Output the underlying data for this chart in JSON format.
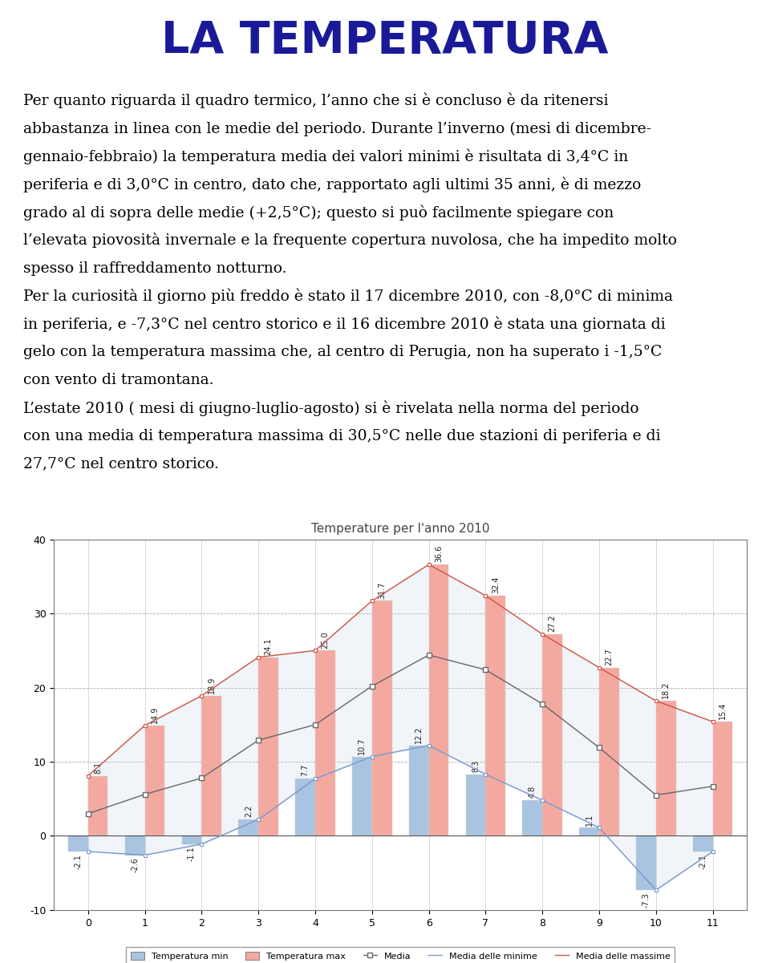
{
  "title": "Temperature per l'anno 2010",
  "months": [
    0,
    1,
    2,
    3,
    4,
    5,
    6,
    7,
    8,
    9,
    10,
    11
  ],
  "temp_min": [
    -2.1,
    -2.6,
    -1.1,
    2.2,
    7.7,
    10.7,
    12.2,
    8.3,
    4.8,
    1.1,
    -7.3,
    -2.1
  ],
  "temp_max": [
    8.1,
    14.9,
    18.9,
    24.1,
    25.0,
    31.7,
    36.6,
    32.4,
    27.2,
    22.7,
    18.2,
    15.4
  ],
  "media": [
    3.0,
    5.6,
    7.8,
    12.9,
    15.0,
    20.2,
    24.4,
    22.4,
    17.8,
    11.9,
    5.5,
    6.7
  ],
  "media_minime": [
    -2.1,
    -2.6,
    -1.1,
    2.2,
    7.7,
    10.7,
    12.2,
    8.3,
    4.8,
    1.1,
    -7.3,
    -2.1
  ],
  "media_massime": [
    8.1,
    14.9,
    18.9,
    24.1,
    25.0,
    31.7,
    36.6,
    32.4,
    27.2,
    22.7,
    18.2,
    15.4
  ],
  "bar_color_min": "#a8c4e0",
  "bar_color_max": "#f4a9a0",
  "line_media_color": "#666666",
  "line_minime_color": "#7799cc",
  "line_massime_color": "#cc5544",
  "fill_color": "#c8d4e8",
  "ylim": [
    -10,
    40
  ],
  "xlim": [
    -0.6,
    11.6
  ],
  "yticks": [
    -10,
    0,
    10,
    20,
    30,
    40
  ],
  "background_color": "#ffffff",
  "chart_title_fontsize": 11,
  "page_title": "LA TEMPERATURA",
  "page_title_color": "#1a1a99",
  "paragraph1": "Per quanto riguarda il quadro termico, l’anno che si è concluso è da ritenersi abbastanza in linea con le medie del periodo.",
  "paragraph2": "Durante l’inverno (mesi di dicembre-gennaio-febbraio) la temperatura media dei valori minimi è risultata di 3,4°C in periferia e di 3,0°C in centro, dato che, rapportato agli ultimi 35 anni, è di mezzo grado al di sopra delle medie (+2,5°C); questo si può facilmente spiegare con l’elevata piovosità invernale e la frequente copertura nuvolosa, che ha impedito molto spesso il raffreddamento notturno.",
  "paragraph3": "Per la curiosità il giorno più freddo è stato il 17 dicembre 2010, con -8,0°C di minima in periferia, e -7,3°C nel centro storico e il 16 dicembre 2010 è stata una giornata di gelo con la temperatura massima che, al centro di Perugia, non ha superato i -1,5°C con vento di tramontana.",
  "paragraph4": "L’estate 2010 ( mesi di giugno-luglio-agosto) si è rivelata nella norma del periodo con una media di temperatura massima di 30,5°C nelle due stazioni di periferia e di 27,7°C nel centro storico."
}
